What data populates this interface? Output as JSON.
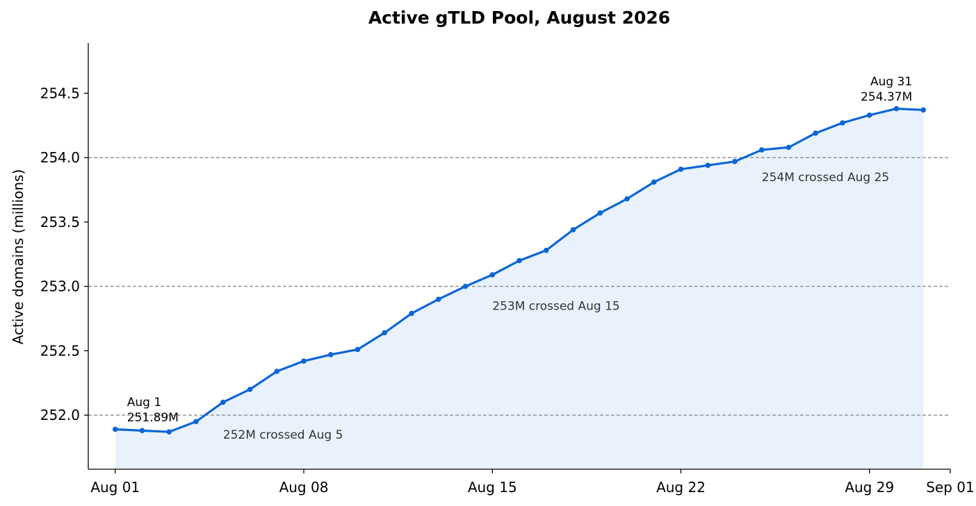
{
  "chart_data": {
    "type": "line",
    "title": "Active gTLD Pool, August 2026",
    "ylabel": "Active domains (millions)",
    "xlabel": "",
    "ylim": [
      251.58,
      254.89
    ],
    "xlim": [
      "2026-07-31",
      "2026-09-01"
    ],
    "y_ticks": [
      252.0,
      252.5,
      253.0,
      253.5,
      254.0,
      254.5
    ],
    "y_tick_labels": [
      "252.0",
      "252.5",
      "253.0",
      "253.5",
      "254.0",
      "254.5"
    ],
    "x_ticks": [
      "2026-08-01",
      "2026-08-08",
      "2026-08-15",
      "2026-08-22",
      "2026-08-29",
      "2026-09-01"
    ],
    "x_tick_labels": [
      "Aug 01",
      "Aug 08",
      "Aug 15",
      "Aug 22",
      "Aug 29",
      "Sep 01"
    ],
    "grid": false,
    "series": [
      {
        "x": [
          "2026-08-01",
          "2026-08-02",
          "2026-08-03",
          "2026-08-04",
          "2026-08-05",
          "2026-08-06",
          "2026-08-07",
          "2026-08-08",
          "2026-08-09",
          "2026-08-10",
          "2026-08-11",
          "2026-08-12",
          "2026-08-13",
          "2026-08-14",
          "2026-08-15",
          "2026-08-16",
          "2026-08-17",
          "2026-08-18",
          "2026-08-19",
          "2026-08-20",
          "2026-08-21",
          "2026-08-22",
          "2026-08-23",
          "2026-08-24",
          "2026-08-25",
          "2026-08-26",
          "2026-08-27",
          "2026-08-28",
          "2026-08-29",
          "2026-08-30",
          "2026-08-31"
        ],
        "values": [
          251.89,
          251.88,
          251.87,
          251.95,
          252.1,
          252.2,
          252.34,
          252.42,
          252.47,
          252.51,
          252.64,
          252.79,
          252.9,
          253.0,
          253.09,
          253.2,
          253.28,
          253.44,
          253.57,
          253.68,
          253.81,
          253.91,
          253.94,
          253.97,
          254.06,
          254.08,
          254.19,
          254.27,
          254.33,
          254.38,
          254.37
        ],
        "color": "#0b66d6",
        "fill_color": "#e9f2fc"
      }
    ],
    "thresholds": [
      {
        "value": 252.0,
        "label": "252M crossed Aug 5",
        "label_x": "2026-08-05",
        "label_y": 251.85
      },
      {
        "value": 253.0,
        "label": "253M crossed Aug 15",
        "label_x": "2026-08-15",
        "label_y": 252.85
      },
      {
        "value": 254.0,
        "label": "254M crossed Aug 25",
        "label_x": "2026-08-25",
        "label_y": 253.85
      }
    ],
    "threshold_color": "#8c8c8c",
    "annotations": [
      {
        "lines": [
          "Aug 1",
          "251.89M"
        ],
        "x": "2026-08-01",
        "y": 252.07,
        "anchor": "start"
      },
      {
        "lines": [
          "Aug 31",
          "254.37M"
        ],
        "x": "2026-08-31",
        "y": 254.56,
        "anchor": "end"
      }
    ]
  }
}
